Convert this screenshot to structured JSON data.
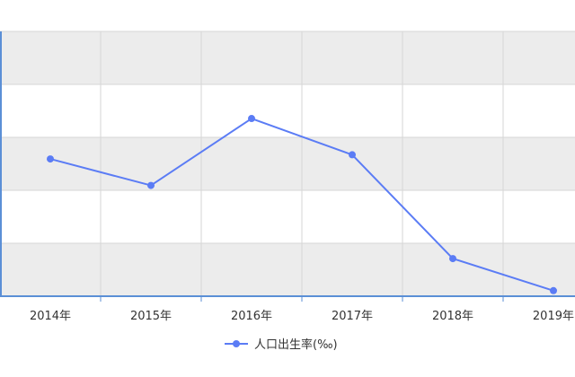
{
  "chart_data": {
    "type": "line",
    "categories": [
      "2014年",
      "2015年",
      "2016年",
      "2017年",
      "2018年",
      "2019年"
    ],
    "series": [
      {
        "name": "人口出生率(‰)",
        "values": [
          12.37,
          11.99,
          12.95,
          12.43,
          10.94,
          10.48
        ],
        "color": "#5b7cf5"
      }
    ],
    "ylim": [
      10.4,
      14.2
    ],
    "grid": true,
    "legend": "bottom-center"
  }
}
